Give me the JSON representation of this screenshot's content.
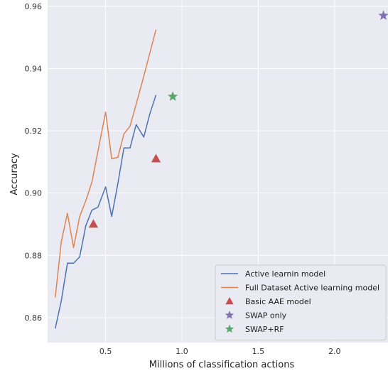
{
  "chart_data": {
    "type": "line",
    "xlabel": "Millions of classification actions",
    "ylabel": "Accuracy",
    "xlim": [
      0.12,
      2.35
    ],
    "ylim": [
      0.852,
      0.962
    ],
    "xticks": [
      0.5,
      1.0,
      1.5,
      2.0
    ],
    "xtick_labels": [
      "0.5",
      "1.0",
      "1.5",
      "2.0"
    ],
    "yticks": [
      0.86,
      0.88,
      0.9,
      0.92,
      0.94,
      0.96
    ],
    "ytick_labels": [
      "0.86",
      "0.88",
      "0.90",
      "0.92",
      "0.94",
      "0.96"
    ],
    "grid": true,
    "background": "#eaeaf2",
    "legend_position": "lower-right",
    "series": [
      {
        "name": "Active learnin model",
        "kind": "line",
        "color": "#4c72b0",
        "x": [
          0.17,
          0.21,
          0.25,
          0.29,
          0.33,
          0.37,
          0.41,
          0.45,
          0.5,
          0.54,
          0.58,
          0.62,
          0.66,
          0.7,
          0.75,
          0.79,
          0.83
        ],
        "y": [
          0.8565,
          0.8655,
          0.8775,
          0.8775,
          0.8795,
          0.8895,
          0.8945,
          0.8955,
          0.902,
          0.8925,
          0.903,
          0.9145,
          0.9145,
          0.922,
          0.918,
          0.9255,
          0.9315
        ]
      },
      {
        "name": "Full Dataset Active learning model",
        "kind": "line",
        "color": "#dd8452",
        "x": [
          0.17,
          0.21,
          0.25,
          0.29,
          0.33,
          0.37,
          0.41,
          0.45,
          0.5,
          0.54,
          0.58,
          0.62,
          0.66,
          0.7,
          0.75,
          0.79,
          0.83
        ],
        "y": [
          0.8665,
          0.8845,
          0.8935,
          0.8825,
          0.8925,
          0.8975,
          0.9035,
          0.9135,
          0.926,
          0.911,
          0.9115,
          0.919,
          0.9215,
          0.9285,
          0.9375,
          0.945,
          0.9525
        ]
      },
      {
        "name": "Basic AAE model",
        "kind": "marker",
        "marker": "triangle",
        "color": "#c44e52",
        "x": [
          0.42,
          0.83
        ],
        "y": [
          0.89,
          0.911
        ]
      },
      {
        "name": "SWAP only",
        "kind": "marker",
        "marker": "star",
        "color": "#8172b3",
        "x": [
          2.32
        ],
        "y": [
          0.957
        ]
      },
      {
        "name": "SWAP+RF",
        "kind": "marker",
        "marker": "star",
        "color": "#55a868",
        "x": [
          0.94
        ],
        "y": [
          0.931
        ]
      }
    ]
  }
}
